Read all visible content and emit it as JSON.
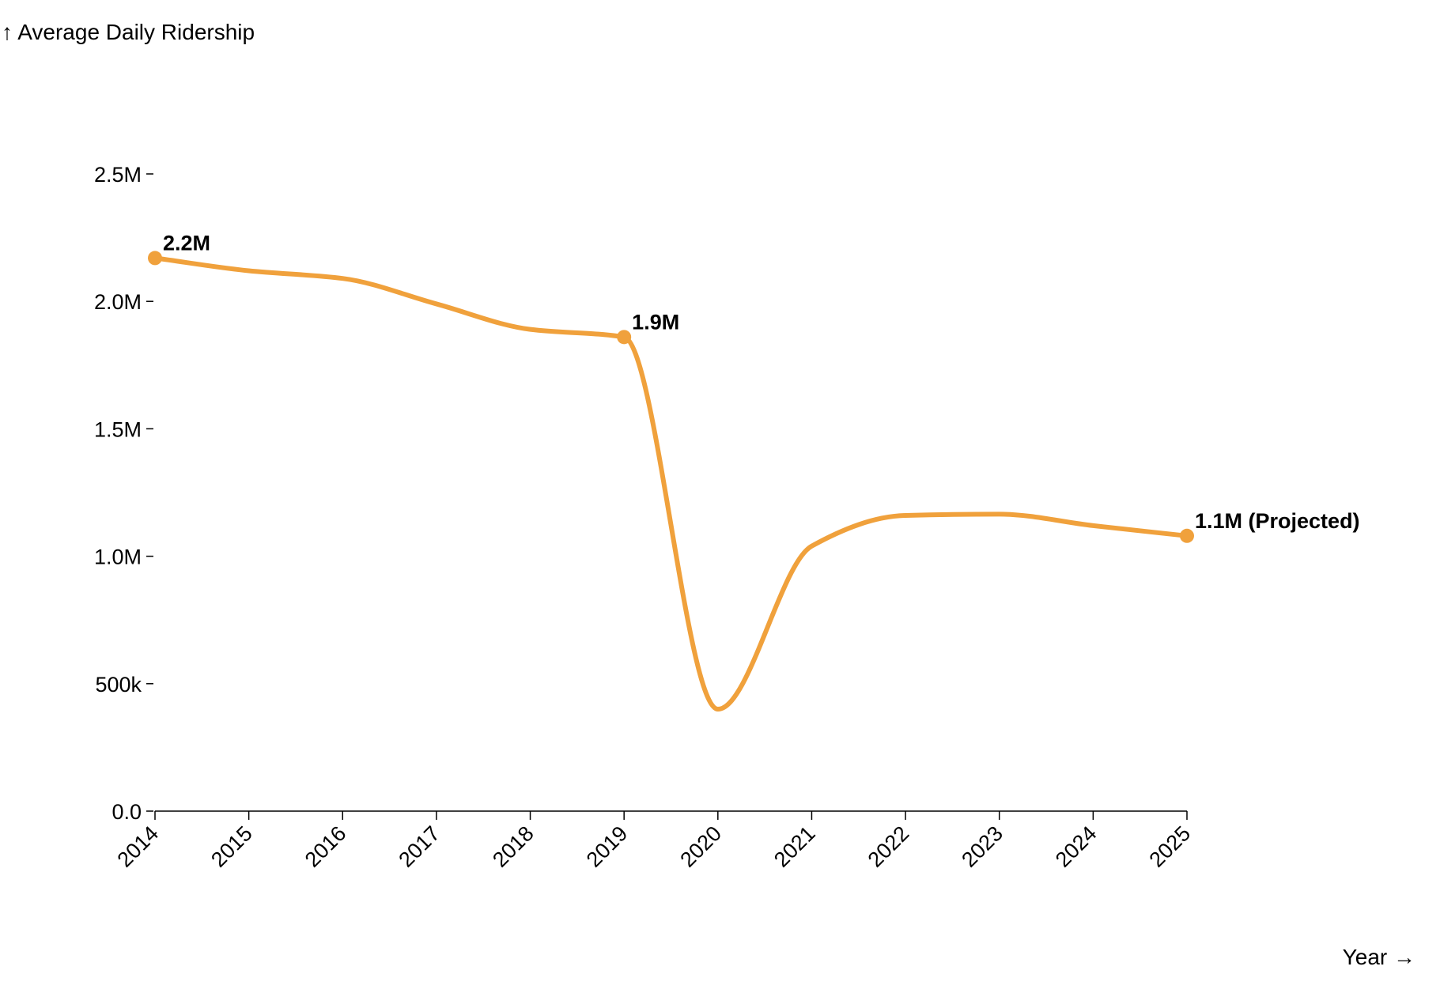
{
  "chart_data": {
    "type": "line",
    "title": "",
    "ylabel": "↑ Average Daily Ridership",
    "xlabel": "Year →",
    "ylim": [
      0,
      2500000
    ],
    "y_ticks": [
      {
        "value": 0,
        "label": "0.0"
      },
      {
        "value": 500000,
        "label": "500k"
      },
      {
        "value": 1000000,
        "label": "1.0M"
      },
      {
        "value": 1500000,
        "label": "1.5M"
      },
      {
        "value": 2000000,
        "label": "2.0M"
      },
      {
        "value": 2500000,
        "label": "2.5M"
      }
    ],
    "x": [
      "2014",
      "2015",
      "2016",
      "2017",
      "2018",
      "2019",
      "2020",
      "2021",
      "2022",
      "2023",
      "2024",
      "2025"
    ],
    "series": [
      {
        "color": "#f0a13c",
        "values": [
          2170000,
          2120000,
          2090000,
          1990000,
          1890000,
          1860000,
          400000,
          1040000,
          1160000,
          1165000,
          1120000,
          1080000
        ]
      }
    ],
    "annotations": [
      {
        "x": "2014",
        "value": 2170000,
        "label": "2.2M"
      },
      {
        "x": "2019",
        "value": 1860000,
        "label": "1.9M"
      },
      {
        "x": "2025",
        "value": 1080000,
        "label": "1.1M (Projected)"
      }
    ],
    "grid": false,
    "legend": "none"
  }
}
